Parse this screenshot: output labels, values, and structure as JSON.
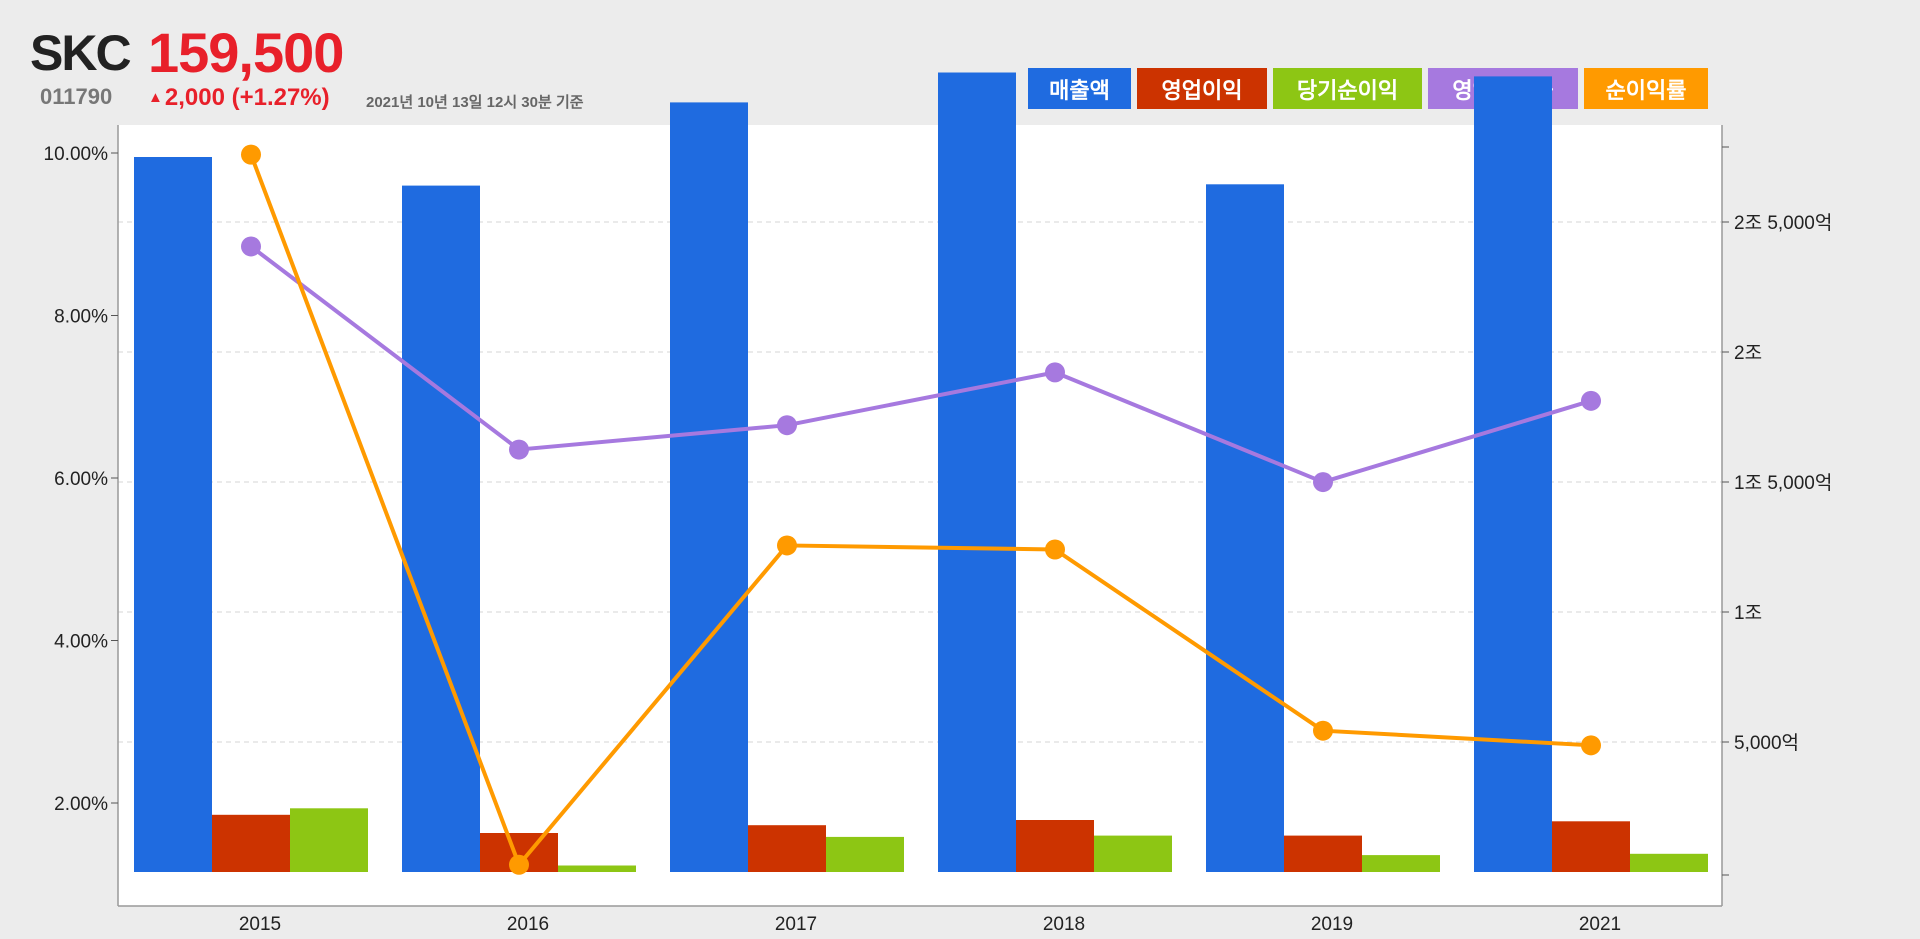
{
  "stock": {
    "name": "SKC",
    "price": "159,500",
    "code": "011790",
    "change": "2,000 (+1.27%)",
    "change_direction": "up",
    "as_of": "2021년 10년 13일 12시 30분 기준"
  },
  "colors": {
    "price_up": "#e8202a",
    "revenue": "#1f6be0",
    "operating_profit": "#cc3300",
    "net_income": "#8dc614",
    "operating_margin": "#a679df",
    "net_margin": "#ff9a00"
  },
  "legend": [
    {
      "label": "매출액",
      "color": "#1f6be0"
    },
    {
      "label": "영업이익",
      "color": "#cc3300"
    },
    {
      "label": "당기순이익",
      "color": "#8dc614"
    },
    {
      "label": "영업이익률",
      "color": "#a679df"
    },
    {
      "label": "순이익률",
      "color": "#ff9a00"
    }
  ],
  "chart_data": {
    "type": "bar",
    "categories": [
      "2015",
      "2016",
      "2017",
      "2018",
      "2019",
      "2021"
    ],
    "bar_series": [
      {
        "name": "매출액",
        "color": "#1f6be0",
        "values": [
          27500,
          26400,
          29600,
          30750,
          26450,
          30600
        ]
      },
      {
        "name": "영업이익",
        "color": "#cc3300",
        "values": [
          2200,
          1500,
          1800,
          2000,
          1400,
          1950
        ]
      },
      {
        "name": "당기순이익",
        "color": "#8dc614",
        "values": [
          2450,
          250,
          1350,
          1400,
          650,
          700
        ]
      }
    ],
    "line_series": [
      {
        "name": "영업이익률",
        "color": "#a679df",
        "values": [
          8.85,
          6.35,
          6.65,
          7.3,
          5.95,
          6.95
        ]
      },
      {
        "name": "순이익률",
        "color": "#ff9a00",
        "values": [
          9.98,
          1.24,
          5.17,
          5.12,
          2.89,
          2.71
        ]
      }
    ],
    "y_left": {
      "min": 1.15,
      "max": 10.05,
      "ticks": [
        2,
        4,
        6,
        8,
        10
      ],
      "tick_labels": [
        "2.00%",
        "4.00%",
        "6.00%",
        "8.00%",
        "10.00%"
      ]
    },
    "y_right": {
      "min": 0,
      "max": 27750,
      "ticks": [
        5000,
        10000,
        15000,
        20000,
        25000
      ],
      "tick_labels": [
        "5,000억",
        "1조",
        "1조 5,000억",
        "2조",
        "2조 5,000억"
      ]
    },
    "y_right_bar_baseline": 0,
    "y_right_bar_full": 27750,
    "unit_right": "억",
    "grid": true
  }
}
